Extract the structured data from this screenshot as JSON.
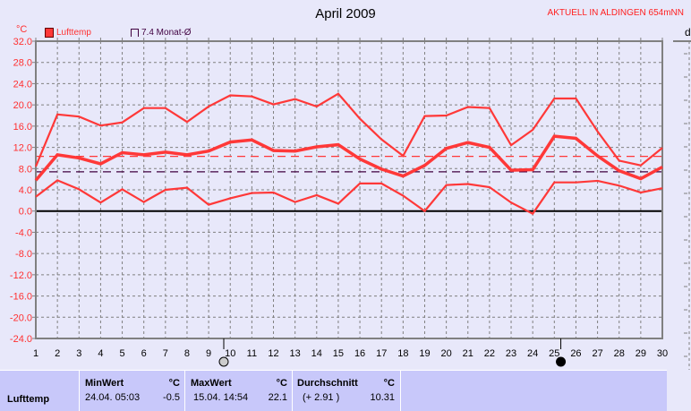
{
  "header": {
    "title": "April 2009",
    "station": "AKTUELL IN ALDINGEN 654mNN",
    "unit": "°C",
    "right_label": "d"
  },
  "legend": [
    {
      "label": "Lufttemp",
      "color": "#ff3838"
    },
    {
      "label": "7.4 Monat-Ø",
      "color": "#400040"
    }
  ],
  "chart_data": {
    "type": "line",
    "title": "April 2009",
    "ylabel": "°C",
    "ylim": [
      -24,
      32
    ],
    "yticks": [
      "32.0",
      "28.0",
      "24.0",
      "20.0",
      "16.0",
      "12.0",
      "8.0",
      "4.0",
      "0.0",
      "-4.0",
      "-8.0",
      "-12.0",
      "-16.0",
      "-20.0",
      "-24.0"
    ],
    "x": [
      1,
      2,
      3,
      4,
      5,
      6,
      7,
      8,
      9,
      10,
      11,
      12,
      13,
      14,
      15,
      16,
      17,
      18,
      19,
      20,
      21,
      22,
      23,
      24,
      25,
      26,
      27,
      28,
      29,
      30
    ],
    "grid": true,
    "series": [
      {
        "role": "max",
        "color": "#ff3838",
        "values": [
          8.4,
          18.2,
          17.8,
          16.1,
          16.7,
          19.4,
          19.4,
          16.8,
          19.7,
          21.8,
          21.6,
          20.1,
          21.1,
          19.7,
          22.1,
          17.4,
          13.5,
          10.4,
          17.9,
          18.0,
          19.6,
          19.4,
          12.4,
          15.3,
          21.2,
          21.2,
          15.0,
          9.5,
          8.6,
          11.9
        ]
      },
      {
        "role": "mean",
        "color": "#ff3838",
        "values": [
          5.8,
          10.6,
          10.0,
          8.9,
          11.0,
          10.6,
          11.1,
          10.6,
          11.3,
          13.0,
          13.4,
          11.4,
          11.3,
          12.1,
          12.5,
          9.8,
          7.9,
          6.6,
          8.6,
          11.8,
          12.9,
          12.0,
          7.7,
          7.8,
          14.1,
          13.7,
          10.4,
          7.6,
          6.1,
          8.3
        ]
      },
      {
        "role": "min",
        "color": "#ff3838",
        "values": [
          2.7,
          5.8,
          4.1,
          1.6,
          4.1,
          1.7,
          4.0,
          4.4,
          1.2,
          2.4,
          3.4,
          3.5,
          1.7,
          3.0,
          1.4,
          5.2,
          5.2,
          2.9,
          0.0,
          4.9,
          5.1,
          4.5,
          1.6,
          -0.5,
          5.4,
          5.4,
          5.7,
          4.8,
          3.5,
          4.3
        ]
      }
    ],
    "reference_lines": [
      {
        "value": 10.31,
        "color": "#ff3838"
      },
      {
        "value": 7.4,
        "color": "#400040",
        "label": "7.4 Monat-Ø"
      }
    ],
    "moon_phases": [
      {
        "day": 9.7,
        "phase": "full-moon"
      },
      {
        "day": 25.3,
        "phase": "new-moon"
      }
    ]
  },
  "stats": {
    "row_label": "Lufttemp",
    "min": {
      "header": "MinWert",
      "unit": "°C",
      "when": "24.04.  05:03",
      "value": "-0.5"
    },
    "max": {
      "header": "MaxWert",
      "unit": "°C",
      "when": "15.04.  14:54",
      "value": "22.1"
    },
    "avg": {
      "header": "Durchschnitt",
      "unit": "°C",
      "delta": "(+ 2.91 )",
      "value": "10.31"
    }
  }
}
